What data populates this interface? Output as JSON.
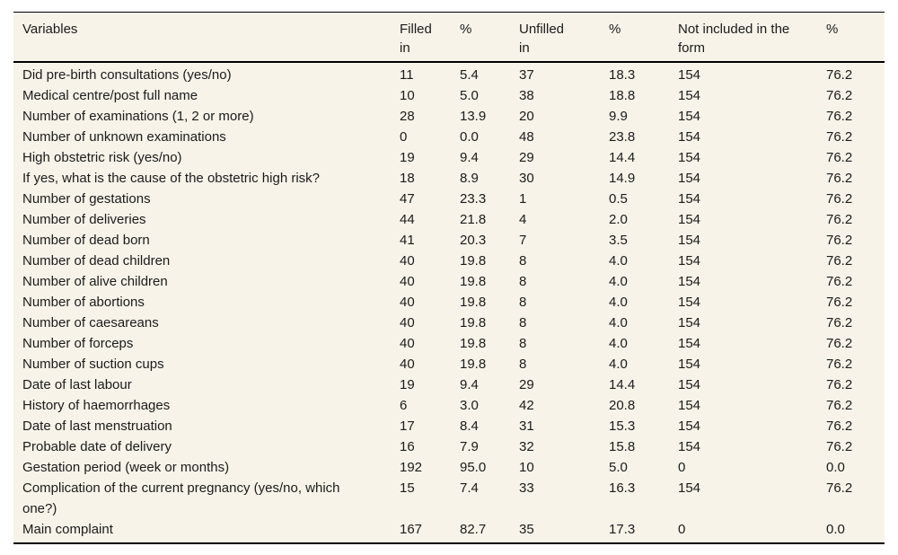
{
  "colors": {
    "table_background": "#f7f3e9",
    "text": "#1b1b1b",
    "rule": "#000000",
    "page_background": "#ffffff"
  },
  "table": {
    "columns": [
      "Variables",
      "Filled in",
      "%",
      "Unfilled in",
      "%",
      "Not included in the form",
      "%"
    ],
    "rows": [
      [
        "Did pre-birth consultations (yes/no)",
        "11",
        "5.4",
        "37",
        "18.3",
        "154",
        "76.2"
      ],
      [
        "Medical centre/post full name",
        "10",
        "5.0",
        "38",
        "18.8",
        "154",
        "76.2"
      ],
      [
        "Number of examinations (1, 2 or more)",
        "28",
        "13.9",
        "20",
        "9.9",
        "154",
        "76.2"
      ],
      [
        "Number of unknown examinations",
        "0",
        "0.0",
        "48",
        "23.8",
        "154",
        "76.2"
      ],
      [
        "High obstetric risk (yes/no)",
        "19",
        "9.4",
        "29",
        "14.4",
        "154",
        "76.2"
      ],
      [
        "If yes, what is the cause of the obstetric high risk?",
        "18",
        "8.9",
        "30",
        "14.9",
        "154",
        "76.2"
      ],
      [
        "Number of gestations",
        "47",
        "23.3",
        "1",
        "0.5",
        "154",
        "76.2"
      ],
      [
        "Number of deliveries",
        "44",
        "21.8",
        "4",
        "2.0",
        "154",
        "76.2"
      ],
      [
        "Number of dead born",
        "41",
        "20.3",
        "7",
        "3.5",
        "154",
        "76.2"
      ],
      [
        "Number of dead children",
        "40",
        "19.8",
        "8",
        "4.0",
        "154",
        "76.2"
      ],
      [
        "Number of alive children",
        "40",
        "19.8",
        "8",
        "4.0",
        "154",
        "76.2"
      ],
      [
        "Number of abortions",
        "40",
        "19.8",
        "8",
        "4.0",
        "154",
        "76.2"
      ],
      [
        "Number of caesareans",
        "40",
        "19.8",
        "8",
        "4.0",
        "154",
        "76.2"
      ],
      [
        "Number of forceps",
        "40",
        "19.8",
        "8",
        "4.0",
        "154",
        "76.2"
      ],
      [
        "Number of suction cups",
        "40",
        "19.8",
        "8",
        "4.0",
        "154",
        "76.2"
      ],
      [
        "Date of last labour",
        "19",
        "9.4",
        "29",
        "14.4",
        "154",
        "76.2"
      ],
      [
        "History of haemorrhages",
        "6",
        "3.0",
        "42",
        "20.8",
        "154",
        "76.2"
      ],
      [
        "Date of last menstruation",
        "17",
        "8.4",
        "31",
        "15.3",
        "154",
        "76.2"
      ],
      [
        "Probable date of delivery",
        "16",
        "7.9",
        "32",
        "15.8",
        "154",
        "76.2"
      ],
      [
        "Gestation period (week or months)",
        "192",
        "95.0",
        "10",
        "5.0",
        "0",
        "0.0"
      ],
      [
        "Complication of the current pregnancy (yes/no, which one?)",
        "15",
        "7.4",
        "33",
        "16.3",
        "154",
        "76.2"
      ],
      [
        "Main complaint",
        "167",
        "82.7",
        "35",
        "17.3",
        "0",
        "0.0"
      ]
    ]
  }
}
